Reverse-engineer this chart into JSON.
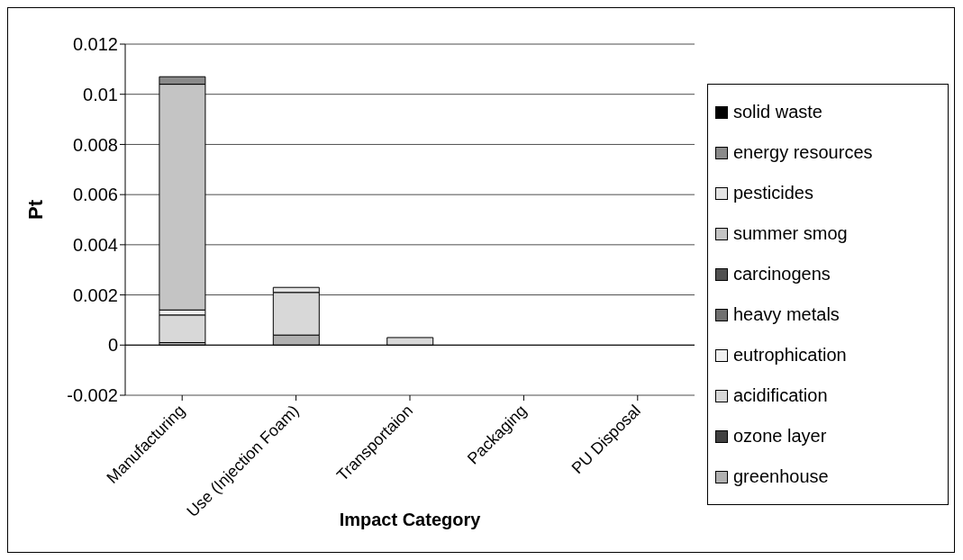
{
  "chart_data": {
    "type": "bar",
    "stacked": true,
    "xlabel": "Impact Category",
    "ylabel": "Pt",
    "categories": [
      "Manufacturing",
      "Use (Injection Foam)",
      "Transportaion",
      "Packaging",
      "PU Disposal"
    ],
    "series": [
      {
        "name": "greenhouse",
        "color": "#b0b0b0",
        "values": [
          0.0001,
          0.0004,
          0,
          0,
          0
        ]
      },
      {
        "name": "ozone layer",
        "color": "#404040",
        "values": [
          0,
          0,
          0,
          0,
          0
        ]
      },
      {
        "name": "acidification",
        "color": "#d8d8d8",
        "values": [
          0.0011,
          0.0017,
          0.0003,
          0,
          0
        ]
      },
      {
        "name": "eutrophication",
        "color": "#f0f0f0",
        "values": [
          0.0002,
          0,
          0,
          0,
          0
        ]
      },
      {
        "name": "heavy metals",
        "color": "#707070",
        "values": [
          0,
          0,
          0,
          0,
          0
        ]
      },
      {
        "name": "carcinogens",
        "color": "#505050",
        "values": [
          0,
          0,
          0,
          0,
          0
        ]
      },
      {
        "name": "summer smog",
        "color": "#c4c4c4",
        "values": [
          0.009,
          0,
          0,
          0,
          0
        ]
      },
      {
        "name": "pesticides",
        "color": "#e4e4e4",
        "values": [
          0,
          0.0002,
          0,
          0,
          0
        ]
      },
      {
        "name": "energy resources",
        "color": "#8a8a8a",
        "values": [
          0.0003,
          0,
          0,
          0,
          0
        ]
      },
      {
        "name": "solid waste",
        "color": "#000000",
        "values": [
          0,
          0,
          0,
          0,
          0
        ]
      }
    ],
    "ylim": [
      -0.002,
      0.012
    ],
    "yticks": [
      -0.002,
      0,
      0.002,
      0.004,
      0.006,
      0.008,
      0.01,
      0.012
    ],
    "grid": "y",
    "legend": "right"
  }
}
